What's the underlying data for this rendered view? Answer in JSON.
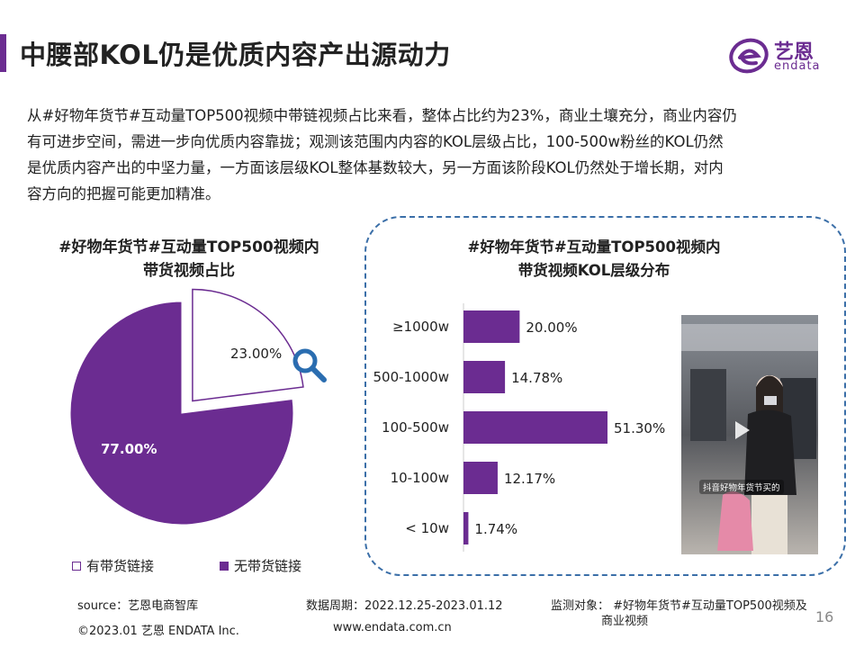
{
  "header": {
    "title": "中腰部KOL仍是优质内容产出源动力",
    "logo_cn": "艺恩",
    "logo_en": "endata",
    "brand_color": "#6b2c91"
  },
  "intro": {
    "lines": [
      "从#好物年货节#互动量TOP500视频中带链视频占比来看，整体占比约为23%，商业土壤充分，商业内容仍",
      "有可进步空间，需进一步向优质内容靠拢；观测该范围内内容的KOL层级占比，100-500w粉丝的KOL仍然",
      "是优质内容产出的中坚力量，一方面该层级KOL整体基数较大，另一方面该阶段KOL仍然处于增长期，对内",
      "容方向的把握可能更加精准。"
    ]
  },
  "chart_data": [
    {
      "type": "pie",
      "title_lines": [
        "#好物年货节#互动量TOP500视频内",
        "带货视频占比"
      ],
      "slices": [
        {
          "label": "有带货链接",
          "value": 23.0,
          "display": "23.00%",
          "color": "#ffffff",
          "stroke": "#6b2c91",
          "exploded": true
        },
        {
          "label": "无带货链接",
          "value": 77.0,
          "display": "77.00%",
          "color": "#6b2c91"
        }
      ],
      "legend": "bottom",
      "decoration_icon": "magnifier-icon"
    },
    {
      "type": "bar",
      "orientation": "horizontal",
      "title_lines": [
        "#好物年货节#互动量TOP500视频内",
        "带货视频KOL层级分布"
      ],
      "categories": [
        "≥1000w",
        "500-1000w",
        "100-500w",
        "10-100w",
        "< 10w"
      ],
      "values": [
        20.0,
        14.78,
        51.3,
        12.17,
        1.74
      ],
      "labels": [
        "20.00%",
        "14.78%",
        "51.30%",
        "12.17%",
        "1.74%"
      ],
      "color": "#6b2c91"
    }
  ],
  "photo": {
    "caption": "抖音好物年货节买的"
  },
  "footer": {
    "source": "source：艺恩电商智库",
    "period": "数据周期：2022.12.25-2023.01.12",
    "object_line1": "监测对象：  #好物年货节#互动量TOP500视频及",
    "object_line2": "商业视频",
    "copyright": "©2023.01 艺恩 ENDATA Inc.",
    "website": "www.endata.com.cn",
    "page": "16"
  }
}
